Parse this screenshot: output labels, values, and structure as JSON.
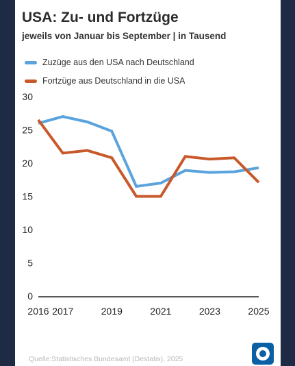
{
  "title": "USA: Zu- und Fortzüge",
  "subtitle": "jeweils von Januar bis September | in Tausend",
  "source": "Quelle:Statistisches Bundesamt (Destatis), 2025",
  "logo_icon": "tagesschau-logo-icon",
  "colors": {
    "zuzuege": "#5ba3dc",
    "fortzuege": "#c8592a",
    "axis": "#222222"
  },
  "chart_data": {
    "type": "line",
    "x": [
      2016,
      2017,
      2018,
      2019,
      2020,
      2021,
      2022,
      2023,
      2024,
      2025
    ],
    "x_tick_labels": [
      "2016",
      "2017",
      "2019",
      "2021",
      "2023",
      "2025"
    ],
    "y_ticks": [
      0,
      5,
      10,
      15,
      20,
      25,
      30
    ],
    "ylim": [
      0,
      30
    ],
    "grid": false,
    "legend_position": "top-left",
    "series": [
      {
        "name": "Zuzüge aus den USA nach Deutschland",
        "color": "#5ba3dc",
        "values": [
          26.0,
          27.0,
          26.2,
          24.8,
          16.5,
          17.0,
          18.9,
          18.6,
          18.7,
          19.3
        ]
      },
      {
        "name": "Fortzüge aus Deutschland in die USA",
        "color": "#c8592a",
        "values": [
          26.5,
          21.5,
          21.9,
          20.8,
          15.0,
          15.0,
          21.0,
          20.6,
          20.8,
          17.1
        ]
      }
    ]
  }
}
